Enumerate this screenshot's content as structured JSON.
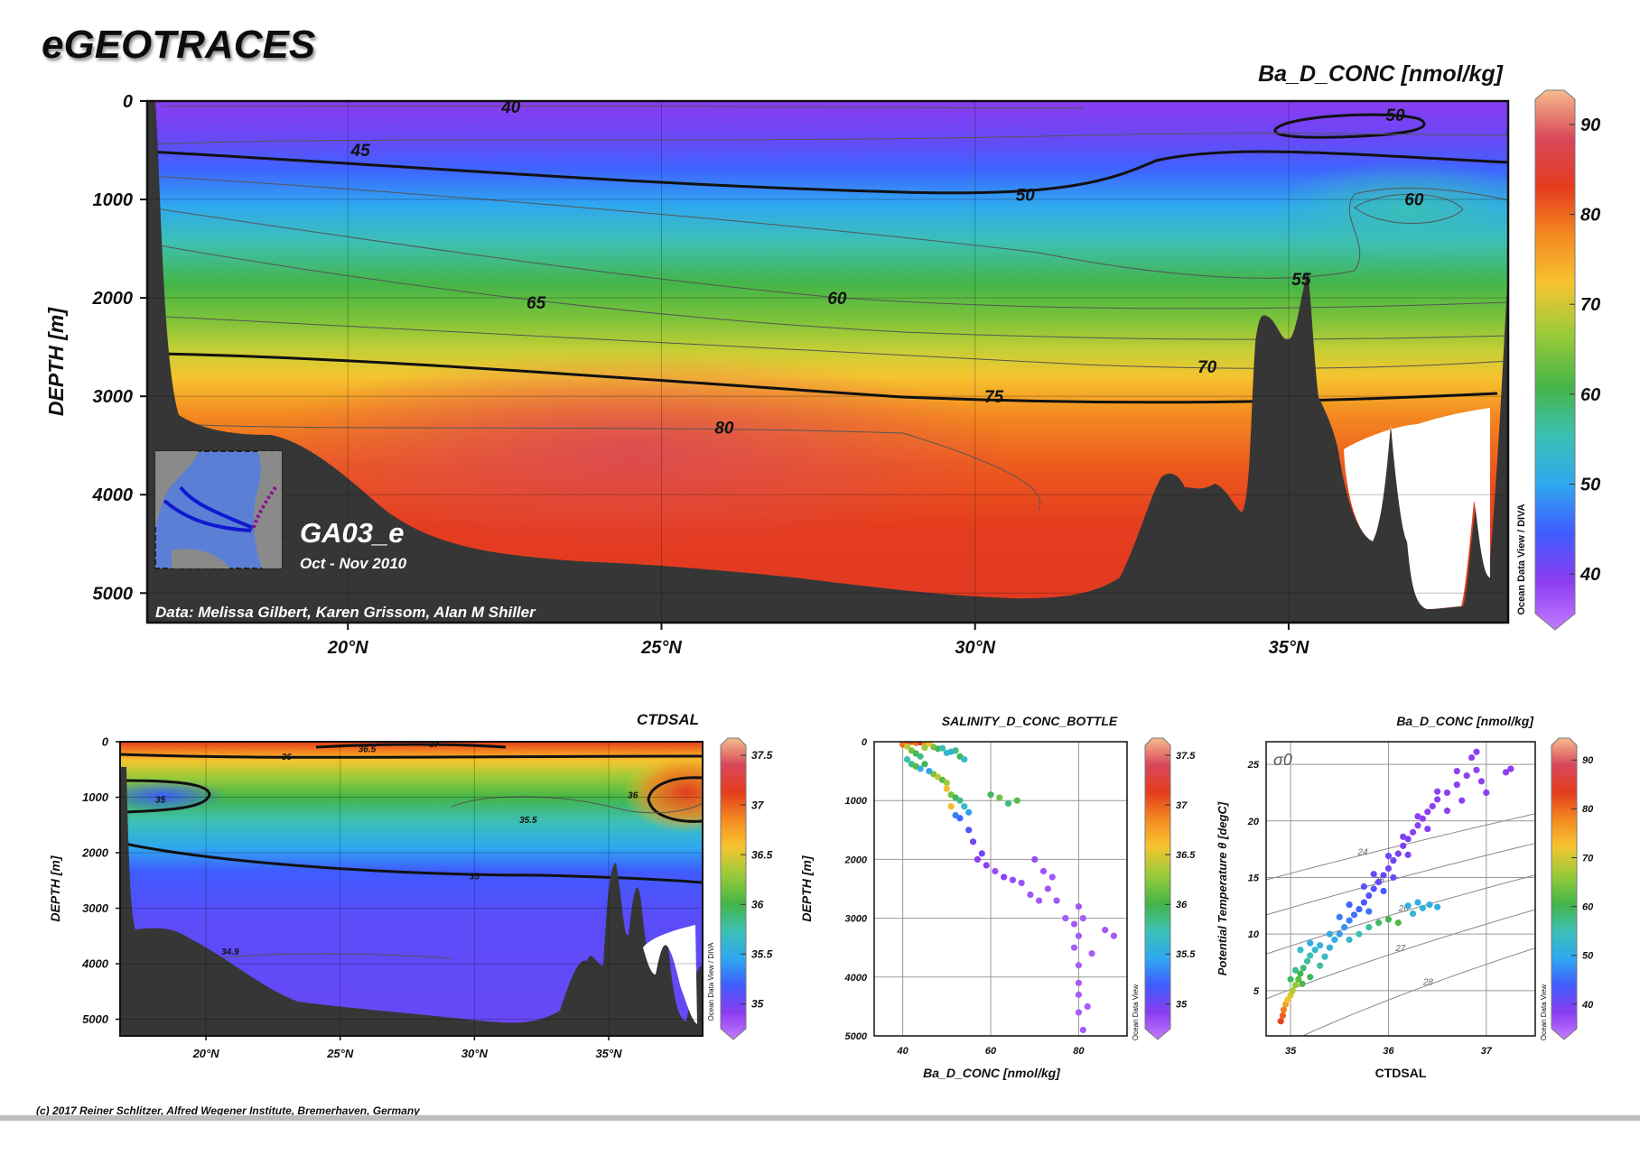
{
  "header": {
    "logo": "eGEOTRACES",
    "footer": "(c) 2017 Reiner Schlitzer, Alfred Wegener Institute, Bremerhaven, Germany"
  },
  "colors": {
    "scale": [
      "#c47cff",
      "#8a3cf0",
      "#3f5cff",
      "#2fa8f0",
      "#3cc0b4",
      "#44b548",
      "#9ccb38",
      "#f6c430",
      "#f48a20",
      "#e43c1e",
      "#d8475a",
      "#f6bb8c"
    ],
    "seafloor": "#363636"
  },
  "main_section": {
    "variable": "Ba_D_CONC [nmol/kg]",
    "cruise": "GA03_e",
    "dates": "Oct - Nov 2010",
    "credit": "Data: Melissa Gilbert, Karen Grissom, Alan M Shiller",
    "side_label": "Ocean Data View / DIVA",
    "ylabel": "DEPTH [m]"
  },
  "salinity_section": {
    "variable": "CTDSAL",
    "ylabel": "DEPTH [m]",
    "side_label": "Ocean Data View / DIVA"
  },
  "scatter_ba": {
    "title": "SALINITY_D_CONC_BOTTLE",
    "xlabel": "Ba_D_CONC [nmol/kg]",
    "ylabel": "DEPTH [m]",
    "side_label": "Ocean Data View"
  },
  "scatter_ts": {
    "title": "Ba_D_CONC [nmol/kg]",
    "xlabel": "CTDSAL",
    "ylabel": "Potential Temperature θ [degC]",
    "sigma_label": "σ0",
    "side_label": "Ocean Data View"
  },
  "chart_data": [
    {
      "type": "heatmap",
      "name": "Ba section",
      "variable": "Ba_D_CONC [nmol/kg]",
      "x_ticks": [
        "20°N",
        "25°N",
        "30°N",
        "35°N"
      ],
      "x_tick_values": [
        20,
        25,
        30,
        35
      ],
      "xlim": [
        16.8,
        38.5
      ],
      "y_ticks": [
        "0",
        "1000",
        "2000",
        "3000",
        "4000",
        "5000"
      ],
      "y_tick_values": [
        0,
        1000,
        2000,
        3000,
        4000,
        5000
      ],
      "ylim": [
        5300,
        0
      ],
      "colorbar": {
        "ticks": [
          "40",
          "50",
          "60",
          "70",
          "80",
          "90"
        ],
        "tick_values": [
          40,
          50,
          60,
          70,
          80,
          90
        ],
        "range": [
          35,
          93
        ]
      },
      "contours": [
        {
          "label": "40",
          "value": 40,
          "lat": 22.6,
          "depth": 60
        },
        {
          "label": "45",
          "value": 45,
          "lat": 20.2,
          "depth": 500
        },
        {
          "label": "50",
          "value": 50,
          "lat": 30.8,
          "depth": 950
        },
        {
          "label": "50",
          "value": 50,
          "lat": 36.7,
          "depth": 140
        },
        {
          "label": "60",
          "value": 60,
          "lat": 37.0,
          "depth": 1000
        },
        {
          "label": "55",
          "value": 55,
          "lat": 35.2,
          "depth": 1810
        },
        {
          "label": "65",
          "value": 65,
          "lat": 23.0,
          "depth": 2050
        },
        {
          "label": "60",
          "value": 60,
          "lat": 27.8,
          "depth": 2000
        },
        {
          "label": "70",
          "value": 70,
          "lat": 33.7,
          "depth": 2700
        },
        {
          "label": "75",
          "value": 75,
          "lat": 30.3,
          "depth": 3000
        },
        {
          "label": "80",
          "value": 80,
          "lat": 26.0,
          "depth": 3320
        }
      ]
    },
    {
      "type": "heatmap",
      "name": "Salinity section",
      "variable": "CTDSAL",
      "x_ticks": [
        "20°N",
        "25°N",
        "30°N",
        "35°N"
      ],
      "x_tick_values": [
        20,
        25,
        30,
        35
      ],
      "xlim": [
        16.8,
        38.5
      ],
      "y_ticks": [
        "0",
        "1000",
        "2000",
        "3000",
        "4000",
        "5000"
      ],
      "y_tick_values": [
        0,
        1000,
        2000,
        3000,
        4000,
        5000
      ],
      "ylim": [
        5300,
        0
      ],
      "colorbar": {
        "ticks": [
          "35",
          "35.5",
          "36",
          "36.5",
          "37",
          "37.5"
        ],
        "tick_values": [
          35,
          35.5,
          36,
          36.5,
          37,
          37.5
        ],
        "range": [
          34.75,
          37.6
        ]
      },
      "contours": [
        {
          "label": "36",
          "value": 36,
          "lat": 23.0,
          "depth": 270
        },
        {
          "label": "36.5",
          "value": 36.5,
          "lat": 26.0,
          "depth": 130
        },
        {
          "label": "37",
          "value": 37,
          "lat": 28.5,
          "depth": 40
        },
        {
          "label": "35",
          "value": 35,
          "lat": 18.3,
          "depth": 1040
        },
        {
          "label": "35.5",
          "value": 35.5,
          "lat": 32.0,
          "depth": 1410
        },
        {
          "label": "36",
          "value": 36,
          "lat": 35.9,
          "depth": 960
        },
        {
          "label": "35",
          "value": 35,
          "lat": 30.0,
          "depth": 2420
        },
        {
          "label": "34.9",
          "value": 34.9,
          "lat": 20.9,
          "depth": 3780
        }
      ]
    },
    {
      "type": "scatter",
      "name": "Ba vs depth",
      "title": "SALINITY_D_CONC_BOTTLE",
      "xlabel": "Ba_D_CONC [nmol/kg]",
      "ylabel": "DEPTH [m]",
      "x_ticks": [
        "40",
        "60",
        "80"
      ],
      "x_tick_values": [
        40,
        60,
        80
      ],
      "xlim": [
        33.5,
        91
      ],
      "y_ticks": [
        "0",
        "1000",
        "2000",
        "3000",
        "4000",
        "5000"
      ],
      "y_tick_values": [
        0,
        1000,
        2000,
        3000,
        4000,
        5000
      ],
      "ylim": [
        5000,
        0
      ],
      "colorbar": {
        "ticks": [
          "35",
          "35.5",
          "36",
          "36.5",
          "37",
          "37.5"
        ],
        "tick_values": [
          35,
          35.5,
          36,
          36.5,
          37,
          37.5
        ],
        "range": [
          34.75,
          37.6
        ]
      },
      "points": [
        [
          40,
          0,
          37.3
        ],
        [
          41,
          10,
          37.2
        ],
        [
          42,
          0,
          37.0
        ],
        [
          43,
          20,
          36.9
        ],
        [
          44,
          10,
          37.1
        ],
        [
          45,
          0,
          36.8
        ],
        [
          46,
          30,
          36.6
        ],
        [
          40,
          50,
          36.9
        ],
        [
          41,
          80,
          36.4
        ],
        [
          42,
          150,
          36.2
        ],
        [
          43,
          200,
          36.0
        ],
        [
          44,
          250,
          35.9
        ],
        [
          45,
          100,
          36.3
        ],
        [
          47,
          90,
          36.2
        ],
        [
          48,
          120,
          36.0
        ],
        [
          49,
          110,
          35.8
        ],
        [
          50,
          190,
          35.7
        ],
        [
          51,
          170,
          35.6
        ],
        [
          52,
          150,
          35.9
        ],
        [
          53,
          250,
          36.0
        ],
        [
          54,
          300,
          35.7
        ],
        [
          41,
          300,
          35.8
        ],
        [
          42,
          380,
          35.9
        ],
        [
          43,
          420,
          36.1
        ],
        [
          44,
          460,
          35.6
        ],
        [
          45,
          380,
          36.0
        ],
        [
          46,
          500,
          35.5
        ],
        [
          47,
          550,
          36.2
        ],
        [
          48,
          600,
          36.4
        ],
        [
          49,
          650,
          36.1
        ],
        [
          50,
          700,
          36.3
        ],
        [
          50,
          800,
          36.6
        ],
        [
          51,
          900,
          36.2
        ],
        [
          52,
          950,
          36.0
        ],
        [
          53,
          1000,
          35.9
        ],
        [
          54,
          1100,
          35.7
        ],
        [
          55,
          1200,
          35.5
        ],
        [
          52,
          1250,
          35.4
        ],
        [
          51,
          1100,
          36.6
        ],
        [
          53,
          1300,
          35.3
        ],
        [
          55,
          1500,
          35.2
        ],
        [
          56,
          1700,
          35.1
        ],
        [
          57,
          2000,
          35.0
        ],
        [
          59,
          2100,
          35.0
        ],
        [
          60,
          900,
          36.0
        ],
        [
          62,
          950,
          36.2
        ],
        [
          64,
          1050,
          35.9
        ],
        [
          66,
          1000,
          36.1
        ],
        [
          58,
          1900,
          35.1
        ],
        [
          61,
          2200,
          34.95
        ],
        [
          63,
          2300,
          35.0
        ],
        [
          65,
          2350,
          34.95
        ],
        [
          67,
          2400,
          34.92
        ],
        [
          69,
          2600,
          34.9
        ],
        [
          71,
          2700,
          34.9
        ],
        [
          70,
          2000,
          34.95
        ],
        [
          72,
          2200,
          34.92
        ],
        [
          74,
          2300,
          34.9
        ],
        [
          73,
          2500,
          34.9
        ],
        [
          75,
          2700,
          34.9
        ],
        [
          77,
          3000,
          34.89
        ],
        [
          79,
          3100,
          34.89
        ],
        [
          80,
          2800,
          34.9
        ],
        [
          81,
          3000,
          34.89
        ],
        [
          80,
          3300,
          34.89
        ],
        [
          79,
          3500,
          34.88
        ],
        [
          80,
          3800,
          34.88
        ],
        [
          80,
          4100,
          34.88
        ],
        [
          80,
          4300,
          34.88
        ],
        [
          80,
          4600,
          34.88
        ],
        [
          82,
          4500,
          34.88
        ],
        [
          81,
          4900,
          34.88
        ],
        [
          83,
          3600,
          34.88
        ],
        [
          86,
          3200,
          34.89
        ],
        [
          88,
          3300,
          34.89
        ]
      ]
    },
    {
      "type": "scatter",
      "name": "Theta vs salinity",
      "title": "Ba_D_CONC [nmol/kg]",
      "xlabel": "CTDSAL",
      "ylabel": "Potential Temperature θ [degC]",
      "x_ticks": [
        "35",
        "36",
        "37"
      ],
      "x_tick_values": [
        35,
        36,
        37
      ],
      "xlim": [
        34.75,
        37.5
      ],
      "y_ticks": [
        "5",
        "10",
        "15",
        "20",
        "25"
      ],
      "y_tick_values": [
        5,
        10,
        15,
        20,
        25
      ],
      "ylim": [
        1,
        27
      ],
      "colorbar": {
        "ticks": [
          "40",
          "50",
          "60",
          "70",
          "80",
          "90"
        ],
        "tick_values": [
          40,
          50,
          60,
          70,
          80,
          90
        ],
        "range": [
          35,
          93
        ]
      },
      "isopycnals": [
        {
          "label": "24",
          "value": 24
        },
        {
          "label": "25",
          "value": 25
        },
        {
          "label": "26",
          "value": 26
        },
        {
          "label": "27",
          "value": 27
        },
        {
          "label": "28",
          "value": 28
        }
      ],
      "points": [
        [
          34.9,
          2.3,
          82
        ],
        [
          34.92,
          2.8,
          80
        ],
        [
          34.93,
          3.3,
          78
        ],
        [
          34.95,
          3.8,
          75
        ],
        [
          34.97,
          4.2,
          72
        ],
        [
          35.0,
          4.6,
          70
        ],
        [
          35.02,
          5.0,
          68
        ],
        [
          35.05,
          5.5,
          66
        ],
        [
          35.08,
          6.0,
          63
        ],
        [
          35.1,
          6.5,
          61
        ],
        [
          35.13,
          7.0,
          59
        ],
        [
          35.17,
          7.6,
          57
        ],
        [
          35.2,
          8.1,
          56
        ],
        [
          35.25,
          8.6,
          54
        ],
        [
          35.0,
          6.0,
          60
        ],
        [
          35.05,
          6.8,
          58
        ],
        [
          35.12,
          5.6,
          62
        ],
        [
          35.2,
          6.2,
          60
        ],
        [
          35.3,
          7.2,
          57
        ],
        [
          35.35,
          8.0,
          55
        ],
        [
          35.4,
          8.8,
          53
        ],
        [
          35.45,
          9.5,
          52
        ],
        [
          35.5,
          10.0,
          50
        ],
        [
          35.55,
          10.6,
          49
        ],
        [
          35.6,
          11.2,
          48
        ],
        [
          35.65,
          11.7,
          47
        ],
        [
          35.7,
          12.2,
          46
        ],
        [
          35.75,
          12.8,
          45
        ],
        [
          35.8,
          13.4,
          44
        ],
        [
          35.85,
          14.0,
          44
        ],
        [
          35.9,
          14.6,
          43
        ],
        [
          35.95,
          15.2,
          43
        ],
        [
          36.0,
          15.8,
          42
        ],
        [
          36.05,
          16.5,
          42
        ],
        [
          36.1,
          17.1,
          41
        ],
        [
          36.15,
          17.8,
          41
        ],
        [
          36.2,
          18.4,
          41
        ],
        [
          36.25,
          19.0,
          40
        ],
        [
          36.3,
          19.6,
          40
        ],
        [
          36.35,
          20.2,
          40
        ],
        [
          36.4,
          20.8,
          40
        ],
        [
          36.45,
          21.3,
          40
        ],
        [
          36.5,
          21.9,
          40
        ],
        [
          36.6,
          22.5,
          40
        ],
        [
          36.7,
          23.2,
          40
        ],
        [
          36.8,
          24.0,
          40
        ],
        [
          36.9,
          24.5,
          40
        ],
        [
          37.2,
          24.3,
          40
        ],
        [
          37.25,
          24.6,
          40
        ],
        [
          36.2,
          12.5,
          52
        ],
        [
          36.3,
          12.8,
          52
        ],
        [
          36.35,
          12.3,
          53
        ],
        [
          36.42,
          12.6,
          52
        ],
        [
          36.5,
          12.4,
          52
        ],
        [
          36.25,
          11.8,
          54
        ],
        [
          35.9,
          11.0,
          60
        ],
        [
          36.0,
          11.3,
          61
        ],
        [
          36.1,
          11.0,
          62
        ],
        [
          35.8,
          10.6,
          57
        ],
        [
          35.7,
          10.0,
          56
        ],
        [
          35.6,
          9.5,
          54
        ],
        [
          35.3,
          9.0,
          53
        ],
        [
          35.2,
          9.2,
          52
        ],
        [
          35.1,
          8.6,
          55
        ],
        [
          35.4,
          10.0,
          52
        ],
        [
          35.5,
          11.5,
          48
        ],
        [
          35.6,
          12.6,
          46
        ],
        [
          35.75,
          14.2,
          44
        ],
        [
          35.85,
          15.3,
          43
        ],
        [
          36.0,
          16.9,
          42
        ],
        [
          36.15,
          18.6,
          41
        ],
        [
          36.3,
          20.4,
          40
        ],
        [
          36.5,
          22.6,
          40
        ],
        [
          36.7,
          24.4,
          40
        ],
        [
          36.85,
          25.6,
          40
        ],
        [
          36.9,
          26.1,
          40
        ],
        [
          36.95,
          23.5,
          40
        ],
        [
          37.0,
          22.5,
          40
        ],
        [
          36.75,
          21.8,
          40
        ],
        [
          36.6,
          20.9,
          40
        ],
        [
          36.4,
          19.3,
          41
        ],
        [
          36.2,
          17.0,
          41
        ],
        [
          36.05,
          15.0,
          43
        ],
        [
          35.95,
          13.8,
          45
        ],
        [
          35.8,
          12.0,
          47
        ]
      ]
    }
  ]
}
